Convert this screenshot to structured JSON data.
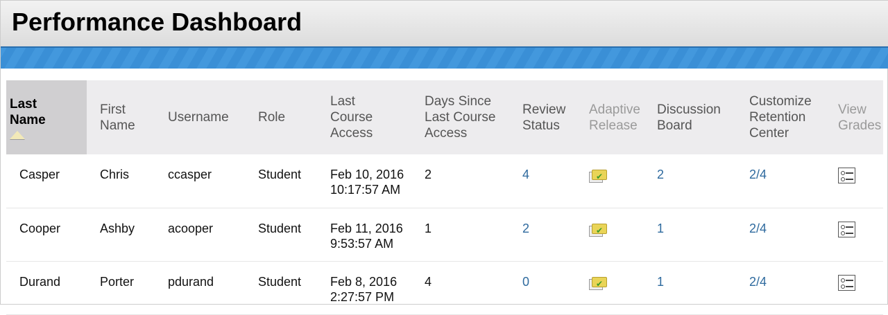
{
  "header": {
    "title": "Performance Dashboard"
  },
  "columns": {
    "last_name": "Last Name",
    "first_name": "First Name",
    "username": "Username",
    "role": "Role",
    "last_access": "Last Course Access",
    "days_since": "Days Since Last Course Access",
    "review_status": "Review Status",
    "adaptive_release": "Adaptive Release",
    "discussion_board": "Discussion Board",
    "retention": "Customize Retention Center",
    "view_grades": "View Grades"
  },
  "sort": {
    "column": "last_name",
    "direction": "ascending"
  },
  "rows": [
    {
      "last": "Casper",
      "first": "Chris",
      "username": "ccasper",
      "role": "Student",
      "date": "Feb 10, 2016",
      "time": "10:17:57 AM",
      "days": "2",
      "review": "4",
      "discussion": "2",
      "retention": "2/4"
    },
    {
      "last": "Cooper",
      "first": "Ashby",
      "username": "acooper",
      "role": "Student",
      "date": "Feb 11, 2016",
      "time": "9:53:57 AM",
      "days": "1",
      "review": "2",
      "discussion": "1",
      "retention": "2/4"
    },
    {
      "last": "Durand",
      "first": "Porter",
      "username": "pdurand",
      "role": "Student",
      "date": "Feb 8, 2016",
      "time": "2:27:57 PM",
      "days": "4",
      "review": "0",
      "discussion": "1",
      "retention": "2/4"
    }
  ],
  "icons": {
    "adaptive": "folder-check-icon",
    "grades": "grade-list-icon",
    "sort": "sort-ascending-icon"
  },
  "colors": {
    "link": "#2e6a9e",
    "banner": "#3a8fd6"
  }
}
